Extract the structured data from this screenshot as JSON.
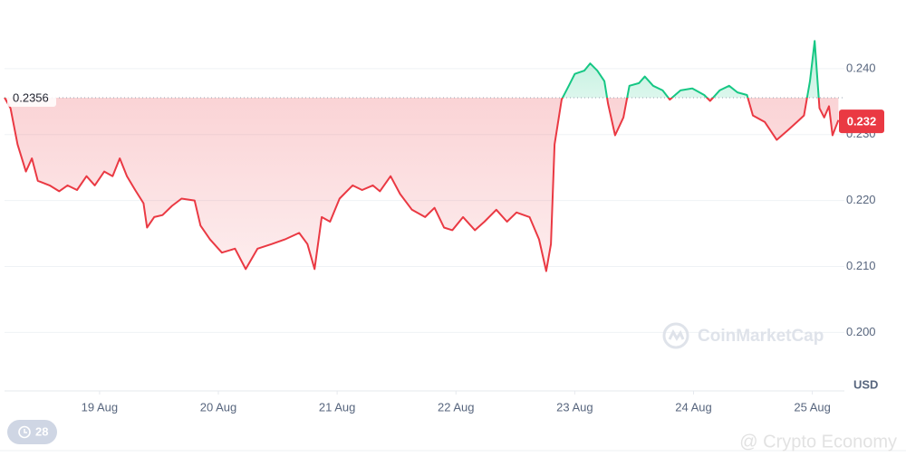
{
  "chart_data": {
    "type": "line",
    "x": [
      18.2,
      18.25,
      18.31,
      18.38,
      18.43,
      18.48,
      18.58,
      18.66,
      18.73,
      18.81,
      18.89,
      18.96,
      19.04,
      19.11,
      19.17,
      19.23,
      19.3,
      19.37,
      19.4,
      19.46,
      19.53,
      19.61,
      19.69,
      19.8,
      19.85,
      19.93,
      20.03,
      20.14,
      20.23,
      20.33,
      20.45,
      20.56,
      20.68,
      20.75,
      20.81,
      20.87,
      20.94,
      21.02,
      21.13,
      21.21,
      21.3,
      21.36,
      21.45,
      21.53,
      21.63,
      21.74,
      21.82,
      21.9,
      21.97,
      22.06,
      22.16,
      22.24,
      22.34,
      22.43,
      22.51,
      22.62,
      22.7,
      22.76,
      22.8,
      22.83,
      22.89,
      22.95,
      23.0,
      23.08,
      23.13,
      23.19,
      23.25,
      23.28,
      23.34,
      23.41,
      23.46,
      23.54,
      23.59,
      23.66,
      23.74,
      23.8,
      23.89,
      23.99,
      24.09,
      24.14,
      24.22,
      24.3,
      24.37,
      24.45,
      24.5,
      24.6,
      24.7,
      24.79,
      24.87,
      24.93,
      24.98,
      25.02,
      25.06,
      25.1,
      25.14,
      25.17,
      25.22
    ],
    "values": [
      0.2356,
      0.234,
      0.2285,
      0.2244,
      0.2264,
      0.223,
      0.2223,
      0.2214,
      0.2223,
      0.2216,
      0.2237,
      0.2223,
      0.2244,
      0.2237,
      0.2264,
      0.2237,
      0.2216,
      0.2196,
      0.2159,
      0.2175,
      0.2178,
      0.2192,
      0.2203,
      0.22,
      0.2162,
      0.2141,
      0.2121,
      0.2127,
      0.2096,
      0.2127,
      0.2134,
      0.2141,
      0.2151,
      0.2134,
      0.2096,
      0.2175,
      0.2168,
      0.2203,
      0.2223,
      0.2216,
      0.2223,
      0.2214,
      0.2237,
      0.221,
      0.2186,
      0.2175,
      0.2189,
      0.2159,
      0.2155,
      0.2175,
      0.2155,
      0.2168,
      0.2186,
      0.2168,
      0.2182,
      0.2175,
      0.2141,
      0.2093,
      0.2134,
      0.2285,
      0.2353,
      0.2374,
      0.2392,
      0.2397,
      0.2408,
      0.2397,
      0.2381,
      0.2347,
      0.2299,
      0.2326,
      0.2374,
      0.2378,
      0.2388,
      0.2374,
      0.2367,
      0.2353,
      0.2367,
      0.237,
      0.236,
      0.2351,
      0.2367,
      0.2374,
      0.2364,
      0.236,
      0.2329,
      0.2319,
      0.2292,
      0.2306,
      0.2319,
      0.2329,
      0.2381,
      0.2442,
      0.234,
      0.2326,
      0.2343,
      0.2299,
      0.2322
    ],
    "baseline": 0.2356,
    "current_price": 0.232,
    "up_color": "#16c784",
    "down_color": "#ea3943",
    "xlim": [
      18.2,
      25.27
    ],
    "xticks": [
      {
        "value": 19,
        "label": "19 Aug"
      },
      {
        "value": 20,
        "label": "20 Aug"
      },
      {
        "value": 21,
        "label": "21 Aug"
      },
      {
        "value": 22,
        "label": "22 Aug"
      },
      {
        "value": 23,
        "label": "23 Aug"
      },
      {
        "value": 24,
        "label": "24 Aug"
      },
      {
        "value": 25,
        "label": "25 Aug"
      }
    ],
    "ylim": [
      0.191,
      0.25
    ],
    "yticks": [
      {
        "value": 0.2,
        "label": "0.200"
      },
      {
        "value": 0.21,
        "label": "0.210"
      },
      {
        "value": 0.22,
        "label": "0.220"
      },
      {
        "value": 0.23,
        "label": "0.230"
      },
      {
        "value": 0.24,
        "label": "0.240"
      }
    ],
    "grid": true,
    "y_unit": "USD",
    "watermark": "CoinMarketCap",
    "badge_count": 28,
    "credit": "@ Crypto Economy"
  }
}
